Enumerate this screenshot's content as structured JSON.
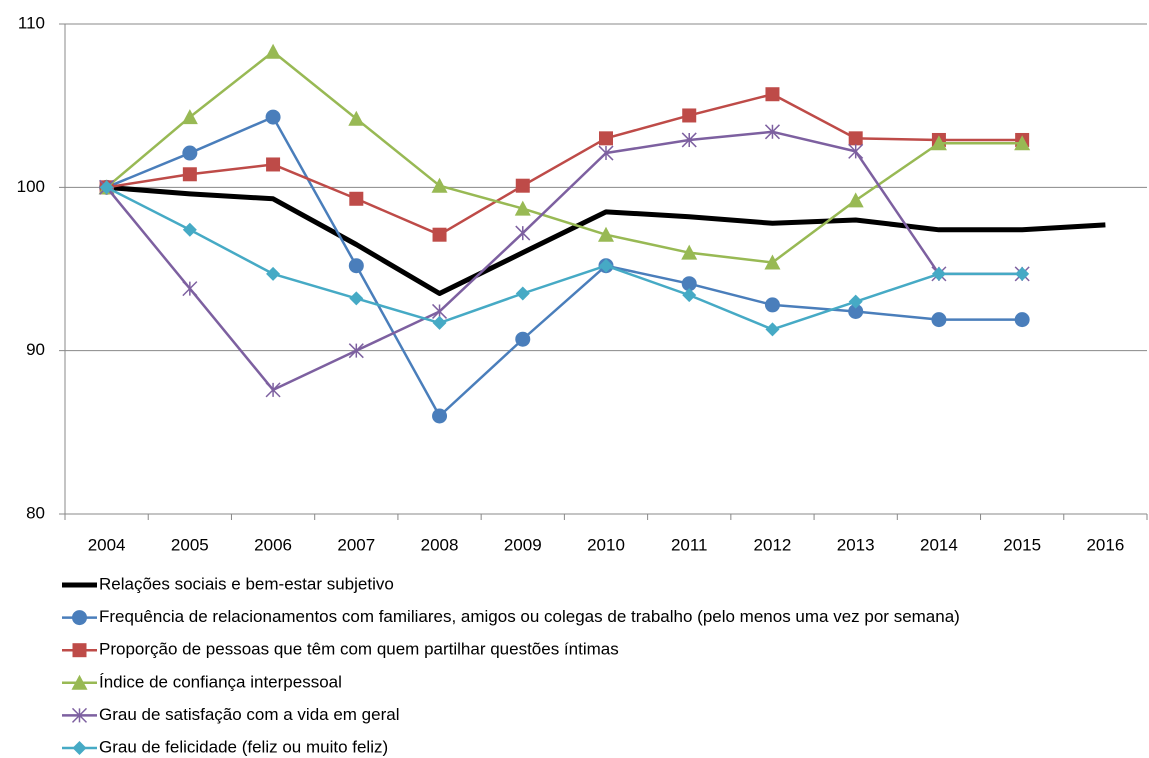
{
  "chart_data": {
    "type": "line",
    "categories": [
      "2004",
      "2005",
      "2006",
      "2007",
      "2008",
      "2009",
      "2010",
      "2011",
      "2012",
      "2013",
      "2014",
      "2015",
      "2016"
    ],
    "ylim": [
      80,
      110
    ],
    "yticks": [
      80,
      90,
      100,
      110
    ],
    "grid": true,
    "series": [
      {
        "name": "Relações sociais e bem-estar subjetivo",
        "color": "#000000",
        "marker": "none",
        "width": 5,
        "values": [
          100,
          99.6,
          99.3,
          96.5,
          93.5,
          96.0,
          98.5,
          98.2,
          97.8,
          98.0,
          97.4,
          97.4,
          97.7
        ]
      },
      {
        "name": "Frequência de relacionamentos com familiares, amigos ou colegas de trabalho (pelo menos uma vez por semana)",
        "color": "#4a7ebb",
        "marker": "circle",
        "width": 2.5,
        "values": [
          100,
          102.1,
          104.3,
          95.2,
          86.0,
          90.7,
          95.2,
          94.1,
          92.8,
          92.4,
          91.9,
          91.9,
          null
        ]
      },
      {
        "name": "Proporção de pessoas que têm com quem partilhar questões íntimas",
        "color": "#be4b48",
        "marker": "square",
        "width": 2.5,
        "values": [
          100,
          100.8,
          101.4,
          99.3,
          97.1,
          100.1,
          103.0,
          104.4,
          105.7,
          103.0,
          102.9,
          102.9,
          null
        ]
      },
      {
        "name": "Índice de confiança interpessoal",
        "color": "#98b954",
        "marker": "triangle",
        "width": 2.5,
        "values": [
          100,
          104.3,
          108.3,
          104.2,
          100.1,
          98.7,
          97.1,
          96.0,
          95.4,
          99.2,
          102.7,
          102.7,
          null
        ]
      },
      {
        "name": "Grau de satisfação com a vida em geral",
        "color": "#7d60a0",
        "marker": "star",
        "width": 2.5,
        "values": [
          100,
          93.8,
          87.6,
          90.0,
          92.4,
          97.2,
          102.1,
          102.9,
          103.4,
          102.2,
          94.7,
          94.7,
          null
        ]
      },
      {
        "name": "Grau de felicidade (feliz ou muito feliz)",
        "color": "#46aac5",
        "marker": "diamond",
        "width": 2.5,
        "values": [
          100,
          97.4,
          94.7,
          93.2,
          91.7,
          93.5,
          95.2,
          93.4,
          91.3,
          93.0,
          94.7,
          94.7,
          null
        ]
      }
    ]
  }
}
